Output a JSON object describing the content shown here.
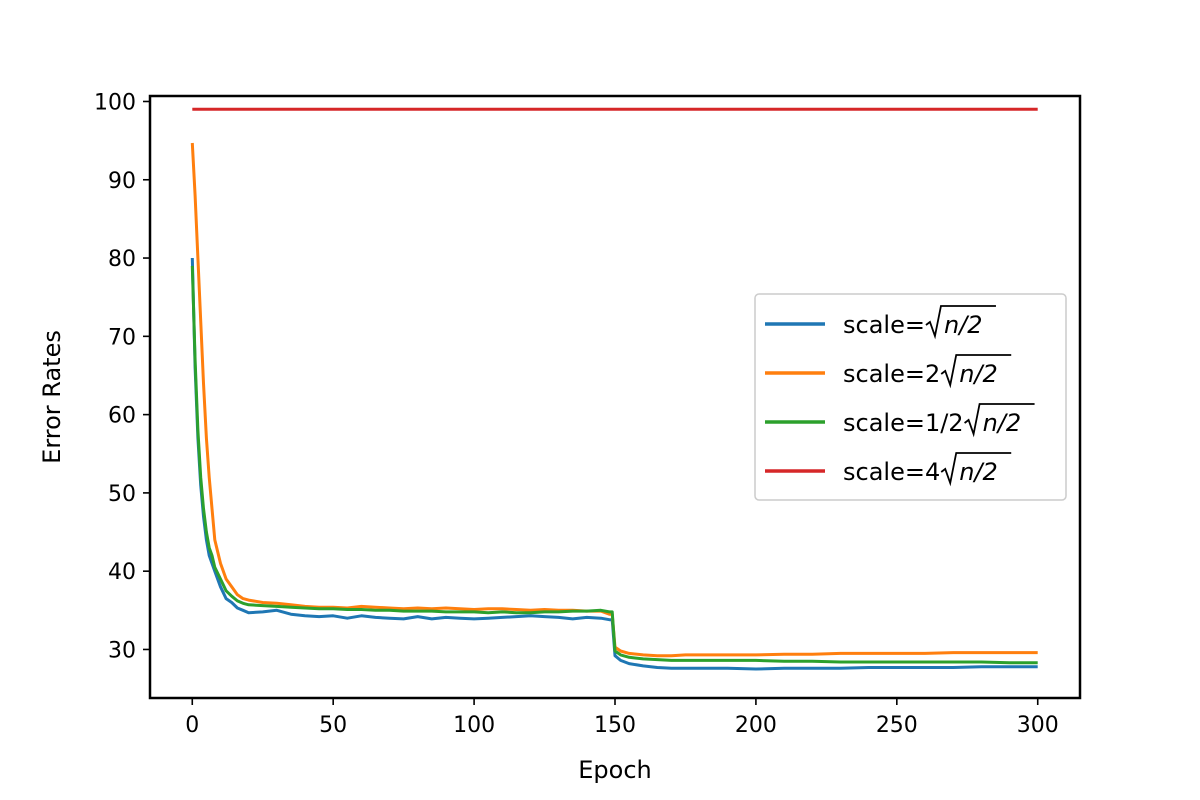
{
  "chart_data": {
    "type": "line",
    "title": "",
    "xlabel": "Epoch",
    "ylabel": "Error Rates",
    "xlim": [
      -15,
      315
    ],
    "ylim": [
      23.8,
      100.7
    ],
    "xticks": [
      0,
      50,
      100,
      150,
      200,
      250,
      300
    ],
    "yticks": [
      30,
      40,
      50,
      60,
      70,
      80,
      90,
      100
    ],
    "grid": false,
    "legend_position": "center-right",
    "series": [
      {
        "name_prefix": "scale=",
        "name_coef": "",
        "name_math": "n/2",
        "color": "#1f77b4",
        "x": [
          0,
          1,
          2,
          3,
          4,
          5,
          6,
          7,
          8,
          10,
          12,
          14,
          16,
          18,
          20,
          25,
          30,
          35,
          40,
          45,
          50,
          55,
          60,
          65,
          70,
          75,
          80,
          85,
          90,
          95,
          100,
          105,
          110,
          115,
          120,
          125,
          130,
          135,
          140,
          145,
          148,
          149,
          150,
          152,
          155,
          160,
          165,
          170,
          175,
          180,
          190,
          200,
          210,
          220,
          230,
          240,
          250,
          260,
          270,
          280,
          290,
          300
        ],
        "y": [
          80,
          66,
          57,
          51,
          47,
          44,
          42,
          41,
          40,
          38,
          36.5,
          36,
          35.3,
          35,
          34.7,
          34.8,
          35,
          34.5,
          34.3,
          34.2,
          34.3,
          34,
          34.3,
          34.1,
          34,
          33.9,
          34.2,
          33.9,
          34.1,
          34,
          33.9,
          34,
          34.1,
          34.2,
          34.3,
          34.2,
          34.1,
          33.9,
          34.1,
          34,
          33.8,
          33.8,
          29.2,
          28.6,
          28.2,
          27.9,
          27.7,
          27.6,
          27.6,
          27.6,
          27.6,
          27.5,
          27.6,
          27.6,
          27.6,
          27.7,
          27.7,
          27.7,
          27.7,
          27.8,
          27.8,
          27.8
        ]
      },
      {
        "name_prefix": "scale=",
        "name_coef": "2",
        "name_math": "n/2",
        "color": "#ff7f0e",
        "x": [
          0,
          1,
          2,
          3,
          4,
          5,
          6,
          7,
          8,
          10,
          12,
          14,
          16,
          18,
          20,
          25,
          30,
          35,
          40,
          45,
          50,
          55,
          60,
          65,
          70,
          75,
          80,
          85,
          90,
          95,
          100,
          105,
          110,
          115,
          120,
          125,
          130,
          135,
          140,
          145,
          148,
          149,
          150,
          152,
          155,
          160,
          165,
          170,
          175,
          180,
          190,
          200,
          210,
          220,
          230,
          240,
          250,
          260,
          270,
          280,
          290,
          300
        ],
        "y": [
          94.7,
          88,
          80,
          72,
          64,
          57,
          52,
          48,
          44,
          41,
          39,
          38,
          37,
          36.5,
          36.3,
          36,
          35.9,
          35.7,
          35.5,
          35.4,
          35.4,
          35.3,
          35.5,
          35.4,
          35.3,
          35.2,
          35.3,
          35.2,
          35.3,
          35.2,
          35.1,
          35.2,
          35.2,
          35.1,
          35,
          35.1,
          35,
          35,
          34.9,
          34.9,
          34.5,
          34.5,
          30.3,
          29.8,
          29.5,
          29.3,
          29.2,
          29.2,
          29.3,
          29.3,
          29.3,
          29.3,
          29.4,
          29.4,
          29.5,
          29.5,
          29.5,
          29.5,
          29.6,
          29.6,
          29.6,
          29.6
        ]
      },
      {
        "name_prefix": "scale=",
        "name_coef": "1/2",
        "name_math": "n/2",
        "color": "#2ca02c",
        "x": [
          0,
          1,
          2,
          3,
          4,
          5,
          6,
          7,
          8,
          10,
          12,
          14,
          16,
          18,
          20,
          25,
          30,
          35,
          40,
          45,
          50,
          55,
          60,
          65,
          70,
          75,
          80,
          85,
          90,
          95,
          100,
          105,
          110,
          115,
          120,
          125,
          130,
          135,
          140,
          145,
          148,
          149,
          150,
          152,
          155,
          160,
          165,
          170,
          175,
          180,
          190,
          200,
          210,
          220,
          230,
          240,
          250,
          260,
          270,
          280,
          290,
          300
        ],
        "y": [
          79,
          67,
          58,
          52,
          48,
          45,
          43,
          42,
          40.5,
          39,
          37.5,
          36.8,
          36.2,
          35.9,
          35.7,
          35.6,
          35.5,
          35.4,
          35.3,
          35.2,
          35.2,
          35.1,
          35.1,
          35,
          35,
          34.9,
          34.9,
          34.9,
          34.8,
          34.8,
          34.8,
          34.7,
          34.8,
          34.7,
          34.7,
          34.8,
          34.8,
          34.9,
          34.9,
          35,
          34.8,
          34.8,
          29.8,
          29.3,
          29,
          28.8,
          28.7,
          28.6,
          28.6,
          28.6,
          28.6,
          28.6,
          28.5,
          28.5,
          28.4,
          28.4,
          28.4,
          28.4,
          28.4,
          28.4,
          28.3,
          28.3
        ]
      },
      {
        "name_prefix": "scale=",
        "name_coef": "4",
        "name_math": "n/2",
        "color": "#d62728",
        "x": [
          0,
          300
        ],
        "y": [
          99,
          99
        ]
      }
    ]
  }
}
